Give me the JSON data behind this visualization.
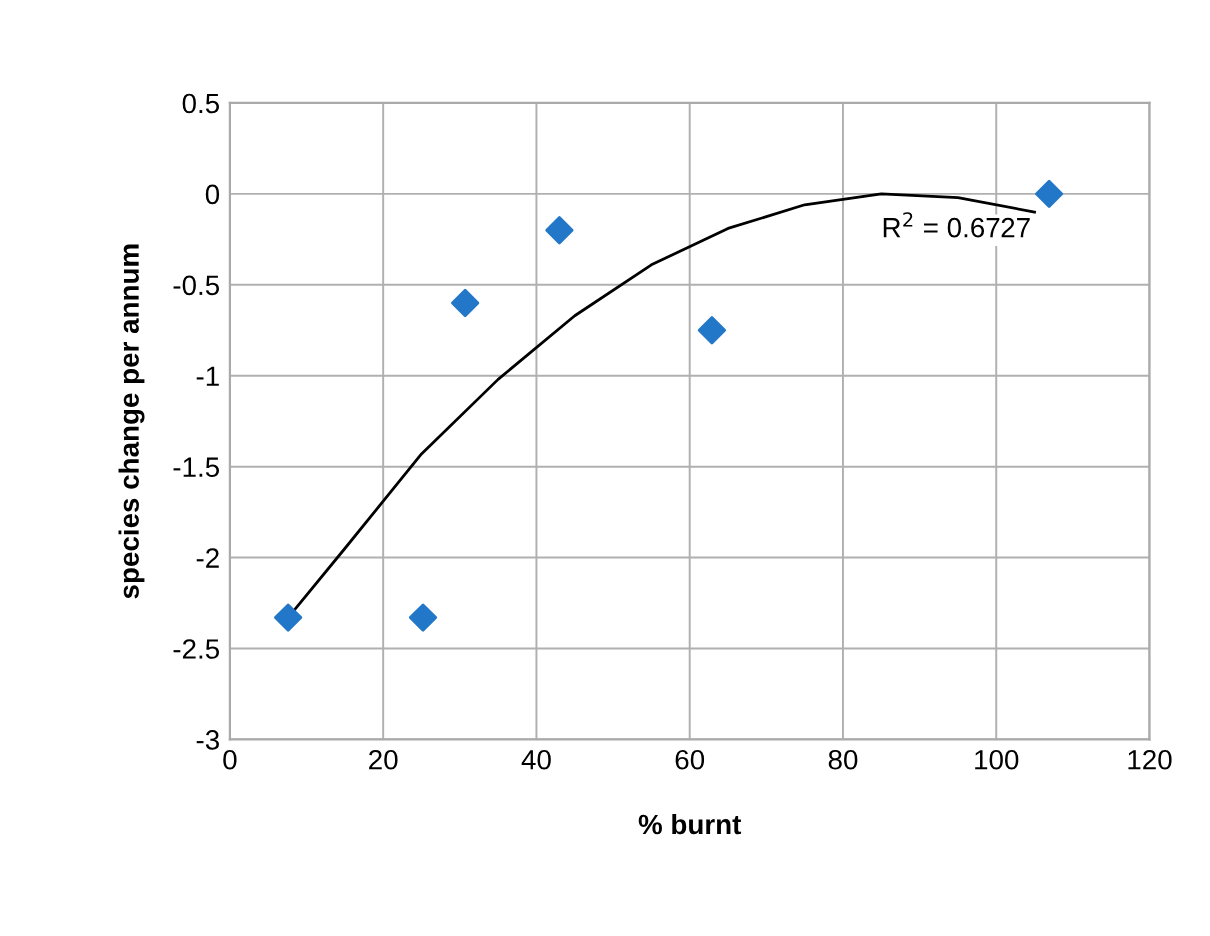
{
  "chart_data": {
    "type": "scatter",
    "xlabel": "% burnt",
    "ylabel": "species change per annum",
    "xlim": [
      0,
      120
    ],
    "xticks": [
      0,
      20,
      40,
      60,
      80,
      100,
      120
    ],
    "ylim": [
      -3,
      0.5
    ],
    "yticks": [
      -3,
      -2.5,
      -2,
      -1.5,
      -1,
      -0.5,
      0,
      0.5
    ],
    "grid": true,
    "series": [
      {
        "marker": "diamond",
        "color": "#2277c8",
        "x": [
          7.6,
          25.2,
          30.7,
          43,
          62.9,
          106.9
        ],
        "values": [
          -2.33,
          -2.33,
          -0.6,
          -0.2,
          -0.75,
          0
        ]
      },
      {
        "type": "line",
        "color": "#000000",
        "x": [
          7.6,
          15,
          25,
          35,
          45,
          55,
          65,
          75,
          85,
          95,
          105
        ],
        "values": [
          -2.33,
          -1.95,
          -1.43,
          -1.02,
          -0.67,
          -0.39,
          -0.19,
          -0.06,
          0.0,
          -0.02,
          -0.1
        ]
      }
    ],
    "annotations": [
      "R$^{2}$ = 0.6727"
    ]
  }
}
